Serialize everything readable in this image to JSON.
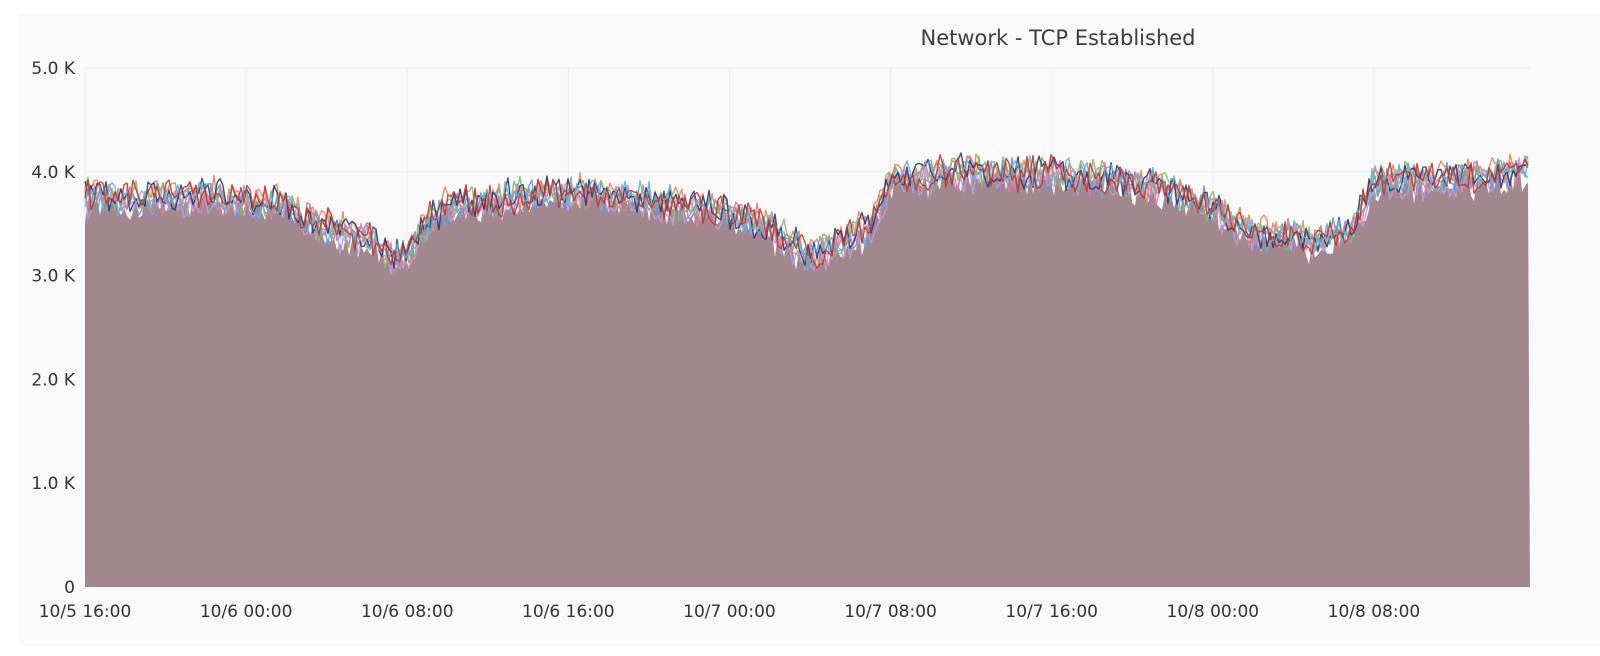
{
  "chart_data": {
    "type": "area",
    "title": "Network - TCP Established",
    "xlabel": "",
    "ylabel": "",
    "ylim": [
      0,
      5000
    ],
    "y_ticks": [
      {
        "value": 0,
        "label": "0"
      },
      {
        "value": 1000,
        "label": "1.0 K"
      },
      {
        "value": 2000,
        "label": "2.0 K"
      },
      {
        "value": 3000,
        "label": "3.0 K"
      },
      {
        "value": 4000,
        "label": "4.0 K"
      },
      {
        "value": 5000,
        "label": "5.0 K"
      }
    ],
    "x_ticks": [
      {
        "value": "2000-10-05T16:00",
        "label": "10/5 16:00"
      },
      {
        "value": "2000-10-06T00:00",
        "label": "10/6 00:00"
      },
      {
        "value": "2000-10-06T08:00",
        "label": "10/6 08:00"
      },
      {
        "value": "2000-10-06T16:00",
        "label": "10/6 16:00"
      },
      {
        "value": "2000-10-07T00:00",
        "label": "10/7 00:00"
      },
      {
        "value": "2000-10-07T08:00",
        "label": "10/7 08:00"
      },
      {
        "value": "2000-10-07T16:00",
        "label": "10/7 16:00"
      },
      {
        "value": "2000-10-08T00:00",
        "label": "10/8 00:00"
      },
      {
        "value": "2000-10-08T08:00",
        "label": "10/8 08:00"
      }
    ],
    "xlim": [
      "2000-10-05T16:00",
      "2000-10-08T15:45"
    ],
    "grid": true,
    "legend": "none",
    "area_color": "#a3878f",
    "x": [
      "2000-10-05T16:00",
      "2000-10-05T18:00",
      "2000-10-05T20:00",
      "2000-10-05T22:00",
      "2000-10-06T00:00",
      "2000-10-06T02:00",
      "2000-10-06T04:00",
      "2000-10-06T06:00",
      "2000-10-06T07:00",
      "2000-10-06T08:00",
      "2000-10-06T09:00",
      "2000-10-06T10:00",
      "2000-10-06T12:00",
      "2000-10-06T14:00",
      "2000-10-06T16:00",
      "2000-10-06T18:00",
      "2000-10-06T20:00",
      "2000-10-06T22:00",
      "2000-10-07T00:00",
      "2000-10-07T02:00",
      "2000-10-07T03:00",
      "2000-10-07T04:00",
      "2000-10-07T05:00",
      "2000-10-07T06:00",
      "2000-10-07T07:00",
      "2000-10-07T08:00",
      "2000-10-07T10:00",
      "2000-10-07T12:00",
      "2000-10-07T14:00",
      "2000-10-07T16:00",
      "2000-10-07T18:00",
      "2000-10-07T20:00",
      "2000-10-07T22:00",
      "2000-10-08T00:00",
      "2000-10-08T01:00",
      "2000-10-08T02:00",
      "2000-10-08T03:00",
      "2000-10-08T04:00",
      "2000-10-08T05:00",
      "2000-10-08T06:00",
      "2000-10-08T07:00",
      "2000-10-08T08:00",
      "2000-10-08T10:00",
      "2000-10-08T12:00",
      "2000-10-08T14:00",
      "2000-10-08T15:45"
    ],
    "series": [
      {
        "color": "#6f8fd1",
        "values": [
          3750,
          3700,
          3720,
          3740,
          3700,
          3650,
          3450,
          3350,
          3200,
          3180,
          3500,
          3650,
          3700,
          3750,
          3780,
          3760,
          3720,
          3650,
          3580,
          3450,
          3300,
          3150,
          3250,
          3350,
          3450,
          3900,
          3950,
          3980,
          3960,
          3980,
          3920,
          3880,
          3800,
          3660,
          3500,
          3400,
          3350,
          3380,
          3300,
          3400,
          3450,
          3880,
          3920,
          3940,
          3950,
          4050
        ]
      },
      {
        "color": "#e0875a",
        "values": [
          3820,
          3760,
          3780,
          3800,
          3760,
          3700,
          3500,
          3400,
          3250,
          3220,
          3550,
          3700,
          3750,
          3800,
          3830,
          3800,
          3760,
          3700,
          3620,
          3500,
          3350,
          3200,
          3300,
          3400,
          3500,
          3950,
          4000,
          4020,
          4000,
          4020,
          3960,
          3920,
          3840,
          3700,
          3540,
          3440,
          3400,
          3420,
          3350,
          3450,
          3500,
          3920,
          3960,
          3980,
          3990,
          4100
        ]
      },
      {
        "color": "#86b86a",
        "values": [
          3780,
          3740,
          3760,
          3770,
          3740,
          3680,
          3480,
          3380,
          3230,
          3200,
          3530,
          3680,
          3730,
          3780,
          3810,
          3790,
          3740,
          3680,
          3600,
          3480,
          3330,
          3180,
          3280,
          3380,
          3480,
          3930,
          3980,
          4000,
          3980,
          4000,
          3940,
          3900,
          3820,
          3680,
          3520,
          3420,
          3380,
          3400,
          3330,
          3430,
          3480,
          3900,
          3940,
          3960,
          3970,
          4080
        ]
      },
      {
        "color": "#b8a0e0",
        "values": [
          3700,
          3680,
          3700,
          3710,
          3680,
          3620,
          3420,
          3320,
          3170,
          3150,
          3470,
          3620,
          3680,
          3720,
          3750,
          3730,
          3690,
          3620,
          3550,
          3420,
          3270,
          3120,
          3220,
          3320,
          3420,
          3870,
          3920,
          3950,
          3930,
          3950,
          3890,
          3850,
          3770,
          3630,
          3470,
          3370,
          3320,
          3350,
          3270,
          3370,
          3420,
          3850,
          3890,
          3910,
          3920,
          4010
        ]
      },
      {
        "color": "#e07a9a",
        "values": [
          3740,
          3720,
          3730,
          3750,
          3720,
          3660,
          3460,
          3360,
          3210,
          3190,
          3510,
          3660,
          3710,
          3760,
          3790,
          3770,
          3730,
          3660,
          3590,
          3460,
          3310,
          3160,
          3260,
          3360,
          3460,
          3910,
          3960,
          3990,
          3970,
          3990,
          3930,
          3890,
          3810,
          3670,
          3510,
          3410,
          3360,
          3390,
          3310,
          3410,
          3460,
          3890,
          3930,
          3950,
          3960,
          4060
        ]
      },
      {
        "color": "#2b3a7a",
        "values": [
          3800,
          3750,
          3770,
          3790,
          3750,
          3690,
          3490,
          3390,
          3240,
          3210,
          3540,
          3690,
          3740,
          3790,
          3820,
          3800,
          3750,
          3690,
          3610,
          3490,
          3340,
          3190,
          3290,
          3390,
          3490,
          3940,
          3990,
          4010,
          3990,
          4010,
          3950,
          3910,
          3830,
          3690,
          3530,
          3430,
          3390,
          3410,
          3340,
          3440,
          3490,
          3910,
          3950,
          3970,
          3980,
          4090
        ]
      },
      {
        "color": "#5fb3c9",
        "values": [
          3760,
          3730,
          3740,
          3760,
          3730,
          3670,
          3470,
          3370,
          3220,
          3200,
          3520,
          3670,
          3720,
          3770,
          3800,
          3780,
          3740,
          3670,
          3600,
          3470,
          3320,
          3170,
          3270,
          3370,
          3470,
          3920,
          3970,
          4000,
          3980,
          4000,
          3940,
          3900,
          3820,
          3680,
          3520,
          3420,
          3370,
          3400,
          3320,
          3420,
          3470,
          3900,
          3940,
          3960,
          3970,
          4070
        ]
      },
      {
        "color": "#c0392b",
        "values": [
          3790,
          3740,
          3760,
          3780,
          3740,
          3680,
          3480,
          3380,
          3230,
          3210,
          3530,
          3680,
          3730,
          3780,
          3810,
          3790,
          3740,
          3680,
          3600,
          3480,
          3330,
          3180,
          3280,
          3380,
          3480,
          3930,
          3980,
          4000,
          3980,
          4000,
          3940,
          3900,
          3820,
          3680,
          3520,
          3420,
          3380,
          3400,
          3330,
          3430,
          3480,
          3900,
          3940,
          3960,
          3970,
          4080
        ]
      }
    ]
  }
}
